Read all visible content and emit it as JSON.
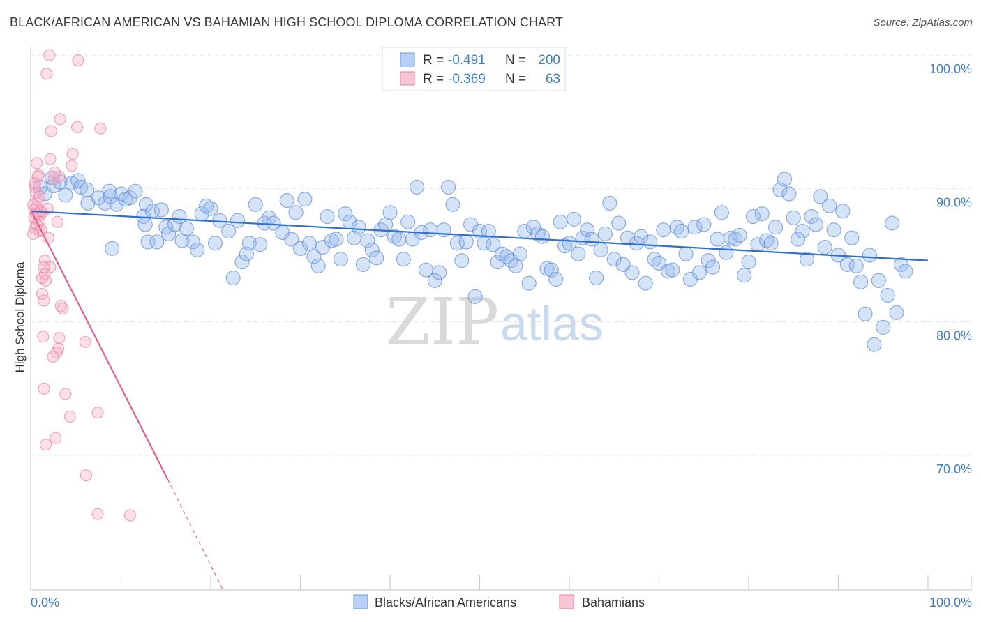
{
  "header": {
    "title": "BLACK/AFRICAN AMERICAN VS BAHAMIAN HIGH SCHOOL DIPLOMA CORRELATION CHART",
    "source": "Source: ZipAtlas.com"
  },
  "watermark": {
    "zip": "ZIP",
    "atlas": "atlas"
  },
  "legend": {
    "r_label": "R =",
    "n_label": "N =",
    "rows": [
      {
        "name": "Blacks/African Americans",
        "r": "-0.491",
        "n": "200",
        "color": "#6f9fe0"
      },
      {
        "name": "Bahamians",
        "r": "-0.369",
        "n": "63",
        "color": "#ee8fad"
      }
    ]
  },
  "chart_data": {
    "type": "scatter",
    "title": "BLACK/AFRICAN AMERICAN VS BAHAMIAN HIGH SCHOOL DIPLOMA CORRELATION CHART",
    "xlabel": "",
    "ylabel": "High School Diploma",
    "xlim": [
      0,
      100
    ],
    "ylim": [
      60,
      101
    ],
    "x_tick_labels": [
      "0.0%",
      "100.0%"
    ],
    "y_ticks": [
      {
        "value": 100,
        "label": "100.0%"
      },
      {
        "value": 90,
        "label": "90.0%"
      },
      {
        "value": 80,
        "label": "80.0%"
      },
      {
        "value": 70,
        "label": "70.0%"
      }
    ],
    "grid": true,
    "legend_position": "top-center",
    "series": [
      {
        "name": "Blacks/African Americans",
        "color": "#6f9fe0",
        "trend": {
          "x": [
            0,
            100
          ],
          "y": [
            88.3,
            84.6
          ],
          "dashed_from": null
        },
        "points": [
          [
            1,
            90.1
          ],
          [
            1.5,
            89.6
          ],
          [
            2.3,
            90.8
          ],
          [
            2.5,
            90.2
          ],
          [
            3.2,
            90.5
          ],
          [
            3.8,
            89.5
          ],
          [
            4.5,
            90.4
          ],
          [
            5.2,
            90.6
          ],
          [
            5.5,
            90.1
          ],
          [
            6.2,
            89.9
          ],
          [
            6.3,
            88.9
          ],
          [
            7.5,
            89.3
          ],
          [
            8.2,
            88.9
          ],
          [
            8.7,
            89.8
          ],
          [
            8.8,
            89.4
          ],
          [
            9,
            85.5
          ],
          [
            9.5,
            88.8
          ],
          [
            10,
            89.6
          ],
          [
            10.5,
            89.2
          ],
          [
            11,
            89.3
          ],
          [
            11.6,
            89.8
          ],
          [
            12.8,
            88.8
          ],
          [
            12.5,
            87.9
          ],
          [
            12.7,
            87.3
          ],
          [
            13,
            86.0
          ],
          [
            13.5,
            88.3
          ],
          [
            14,
            86.0
          ],
          [
            14.5,
            88.4
          ],
          [
            15.0,
            87.1
          ],
          [
            15.3,
            86.6
          ],
          [
            16,
            87.3
          ],
          [
            16.5,
            87.9
          ],
          [
            16.8,
            86.1
          ],
          [
            17.3,
            87.0
          ],
          [
            18,
            86.0
          ],
          [
            18.5,
            85.4
          ],
          [
            19,
            88.1
          ],
          [
            19.5,
            88.7
          ],
          [
            20,
            88.5
          ],
          [
            20.5,
            85.9
          ],
          [
            21,
            87.6
          ],
          [
            22,
            86.8
          ],
          [
            22.5,
            83.3
          ],
          [
            23,
            87.6
          ],
          [
            23.5,
            84.5
          ],
          [
            24,
            85.1
          ],
          [
            24.3,
            85.9
          ],
          [
            25,
            88.8
          ],
          [
            25.5,
            85.8
          ],
          [
            26,
            87.4
          ],
          [
            26.5,
            87.8
          ],
          [
            27,
            87.4
          ],
          [
            28,
            86.7
          ],
          [
            28.5,
            89.1
          ],
          [
            29,
            86.2
          ],
          [
            29.5,
            88.2
          ],
          [
            30,
            85.5
          ],
          [
            30.5,
            89.2
          ],
          [
            31,
            85.9
          ],
          [
            31.5,
            84.9
          ],
          [
            32,
            84.2
          ],
          [
            32.5,
            85.6
          ],
          [
            33,
            87.9
          ],
          [
            33.5,
            86.1
          ],
          [
            34,
            86.2
          ],
          [
            34.5,
            84.7
          ],
          [
            35,
            88.1
          ],
          [
            35.5,
            87.5
          ],
          [
            36,
            86.3
          ],
          [
            36.5,
            87.1
          ],
          [
            37,
            84.3
          ],
          [
            37.5,
            86.1
          ],
          [
            38,
            85.4
          ],
          [
            38.5,
            84.8
          ],
          [
            39,
            86.9
          ],
          [
            39.5,
            87.3
          ],
          [
            40,
            88.2
          ],
          [
            40.5,
            86.4
          ],
          [
            41,
            86.2
          ],
          [
            41.5,
            84.7
          ],
          [
            42,
            87.5
          ],
          [
            42.5,
            86.2
          ],
          [
            43,
            90.1
          ],
          [
            43.5,
            86.7
          ],
          [
            44,
            83.9
          ],
          [
            44.5,
            86.9
          ],
          [
            45,
            83.1
          ],
          [
            45.5,
            83.7
          ],
          [
            46,
            86.9
          ],
          [
            46.5,
            90.1
          ],
          [
            47,
            88.8
          ],
          [
            47.5,
            85.9
          ],
          [
            48,
            84.6
          ],
          [
            48.5,
            86.0
          ],
          [
            49,
            87.3
          ],
          [
            49.5,
            81.9
          ],
          [
            50,
            86.8
          ],
          [
            50.5,
            85.9
          ],
          [
            51,
            86.8
          ],
          [
            51.5,
            85.8
          ],
          [
            52,
            84.5
          ],
          [
            52.5,
            85.1
          ],
          [
            53,
            84.9
          ],
          [
            53.5,
            84.6
          ],
          [
            54,
            84.2
          ],
          [
            54.5,
            85.1
          ],
          [
            55,
            86.8
          ],
          [
            55.5,
            82.9
          ],
          [
            56,
            87.1
          ],
          [
            56.5,
            86.6
          ],
          [
            57,
            86.4
          ],
          [
            57.5,
            84.0
          ],
          [
            58,
            83.9
          ],
          [
            58.5,
            83.2
          ],
          [
            59,
            87.5
          ],
          [
            59.5,
            85.7
          ],
          [
            60,
            85.9
          ],
          [
            60.5,
            87.7
          ],
          [
            61,
            85.1
          ],
          [
            61.5,
            86.3
          ],
          [
            62,
            86.9
          ],
          [
            62.5,
            86.2
          ],
          [
            63,
            83.3
          ],
          [
            63.5,
            85.4
          ],
          [
            64,
            86.6
          ],
          [
            64.5,
            88.9
          ],
          [
            65,
            84.7
          ],
          [
            65.5,
            87.4
          ],
          [
            66,
            84.3
          ],
          [
            66.5,
            86.3
          ],
          [
            67,
            83.7
          ],
          [
            67.5,
            85.9
          ],
          [
            68,
            86.4
          ],
          [
            68.5,
            82.9
          ],
          [
            69,
            86.0
          ],
          [
            69.5,
            84.7
          ],
          [
            70,
            84.4
          ],
          [
            70.5,
            86.9
          ],
          [
            71,
            83.8
          ],
          [
            71.5,
            83.9
          ],
          [
            72,
            87.1
          ],
          [
            72.5,
            86.8
          ],
          [
            73,
            85.1
          ],
          [
            73.5,
            83.2
          ],
          [
            74,
            87.1
          ],
          [
            74.5,
            83.7
          ],
          [
            75,
            87.3
          ],
          [
            75.5,
            84.6
          ],
          [
            76,
            84.1
          ],
          [
            76.5,
            86.2
          ],
          [
            77,
            88.2
          ],
          [
            77.5,
            85.2
          ],
          [
            78,
            86.3
          ],
          [
            78.5,
            86.2
          ],
          [
            79,
            86.5
          ],
          [
            79.5,
            83.5
          ],
          [
            80,
            84.5
          ],
          [
            80.5,
            87.9
          ],
          [
            81,
            85.8
          ],
          [
            81.5,
            88.1
          ],
          [
            82,
            86.1
          ],
          [
            82.5,
            85.9
          ],
          [
            83,
            87.1
          ],
          [
            83.5,
            89.9
          ],
          [
            84,
            90.7
          ],
          [
            84.5,
            89.6
          ],
          [
            85,
            87.8
          ],
          [
            85.5,
            86.2
          ],
          [
            86,
            86.8
          ],
          [
            86.5,
            84.7
          ],
          [
            87,
            87.9
          ],
          [
            87.5,
            87.3
          ],
          [
            88,
            89.4
          ],
          [
            88.5,
            85.6
          ],
          [
            89,
            88.7
          ],
          [
            89.5,
            86.9
          ],
          [
            90,
            85.0
          ],
          [
            90.5,
            88.3
          ],
          [
            91,
            84.3
          ],
          [
            91.5,
            86.3
          ],
          [
            92,
            84.2
          ],
          [
            92.5,
            83.0
          ],
          [
            93,
            80.6
          ],
          [
            93.5,
            85.0
          ],
          [
            94,
            78.3
          ],
          [
            94.5,
            83.1
          ],
          [
            95,
            79.6
          ],
          [
            95.5,
            82.0
          ],
          [
            96,
            87.4
          ],
          [
            96.5,
            80.7
          ],
          [
            97,
            84.3
          ],
          [
            97.5,
            83.8
          ]
        ]
      },
      {
        "name": "Bahamians",
        "color": "#ee8fad",
        "trend": {
          "x": [
            0,
            15.2
          ],
          "y": [
            88.3,
            68.2
          ],
          "dashed_to": [
            21.3,
            60
          ]
        },
        "points": [
          [
            2.0,
            100.0
          ],
          [
            5.2,
            99.6
          ],
          [
            1.7,
            98.6
          ],
          [
            3.2,
            95.2
          ],
          [
            5.1,
            94.6
          ],
          [
            2.2,
            94.3
          ],
          [
            7.7,
            94.5
          ],
          [
            4.6,
            92.6
          ],
          [
            2.1,
            92.2
          ],
          [
            4.5,
            91.7
          ],
          [
            0.6,
            91.9
          ],
          [
            0.8,
            91.0
          ],
          [
            3.1,
            90.9
          ],
          [
            2.5,
            90.7
          ],
          [
            0.4,
            90.1
          ],
          [
            0.5,
            89.7
          ],
          [
            0.7,
            89.1
          ],
          [
            0.6,
            88.6
          ],
          [
            1.2,
            88.2
          ],
          [
            0.8,
            88.0
          ],
          [
            0.3,
            87.8
          ],
          [
            0.9,
            87.5
          ],
          [
            2.9,
            87.5
          ],
          [
            0.4,
            87.0
          ],
          [
            0.9,
            86.8
          ],
          [
            1.9,
            86.3
          ],
          [
            1.5,
            84.6
          ],
          [
            1.4,
            84.1
          ],
          [
            2.1,
            84.1
          ],
          [
            1.5,
            83.6
          ],
          [
            1.2,
            83.3
          ],
          [
            1.6,
            83.1
          ],
          [
            1.2,
            82.1
          ],
          [
            1.4,
            81.6
          ],
          [
            3.3,
            81.2
          ],
          [
            3.5,
            81.0
          ],
          [
            1.3,
            78.9
          ],
          [
            3.1,
            78.8
          ],
          [
            6.0,
            78.5
          ],
          [
            3.0,
            78.0
          ],
          [
            2.8,
            77.7
          ],
          [
            2.4,
            77.4
          ],
          [
            1.4,
            75.0
          ],
          [
            3.8,
            74.6
          ],
          [
            4.3,
            72.9
          ],
          [
            7.4,
            73.2
          ],
          [
            2.7,
            71.3
          ],
          [
            1.6,
            70.8
          ],
          [
            6.1,
            68.5
          ],
          [
            7.4,
            65.6
          ],
          [
            11.0,
            65.5
          ],
          [
            0.2,
            88.8
          ],
          [
            0.3,
            88.4
          ],
          [
            0.5,
            88.1
          ],
          [
            0.6,
            87.3
          ],
          [
            1.0,
            88.3
          ],
          [
            1.1,
            86.9
          ],
          [
            0.2,
            86.6
          ],
          [
            0.4,
            90.4
          ],
          [
            0.7,
            90.9
          ],
          [
            1.8,
            88.5
          ],
          [
            2.6,
            91.2
          ],
          [
            0.9,
            89.4
          ]
        ]
      }
    ]
  }
}
